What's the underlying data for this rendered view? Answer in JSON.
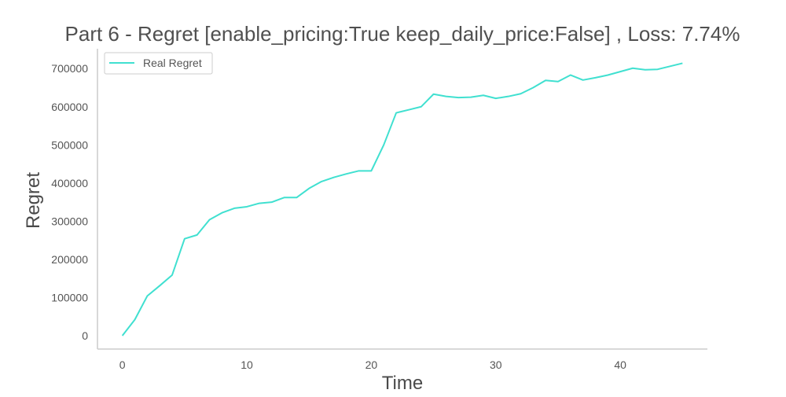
{
  "chart_data": {
    "type": "line",
    "title": "Part 6 - Regret [enable_pricing:True keep_daily_price:False] , Loss: 7.74%",
    "xlabel": "Time",
    "ylabel": "Regret",
    "xlim": [
      -2,
      47
    ],
    "ylim": [
      -35000,
      752000
    ],
    "xticks": [
      0,
      10,
      20,
      30,
      40
    ],
    "xtick_labels": [
      "0",
      "10",
      "20",
      "30",
      "40"
    ],
    "yticks": [
      0,
      100000,
      200000,
      300000,
      400000,
      500000,
      600000,
      700000
    ],
    "ytick_labels": [
      "0",
      "100000",
      "200000",
      "300000",
      "400000",
      "500000",
      "600000",
      "700000"
    ],
    "grid": false,
    "legend": {
      "position": "top-left",
      "entries": [
        "Real Regret"
      ]
    },
    "series": [
      {
        "name": "Real Regret",
        "color": "#40E0D0",
        "x": [
          0,
          1,
          2,
          3,
          4,
          5,
          6,
          7,
          8,
          9,
          10,
          11,
          12,
          13,
          14,
          15,
          16,
          17,
          18,
          19,
          20,
          21,
          22,
          23,
          24,
          25,
          26,
          27,
          28,
          29,
          30,
          31,
          32,
          33,
          34,
          35,
          36,
          37,
          38,
          39,
          40,
          41,
          42,
          43,
          44,
          45
        ],
        "y": [
          0,
          42000,
          104000,
          131000,
          159000,
          254000,
          264000,
          304000,
          322000,
          334000,
          338000,
          347000,
          350000,
          362000,
          362000,
          386000,
          404000,
          415000,
          424000,
          432000,
          432000,
          500000,
          584000,
          592000,
          600000,
          633000,
          627000,
          624000,
          625000,
          630000,
          622000,
          627000,
          634000,
          650000,
          669000,
          666000,
          683000,
          670000,
          676000,
          683000,
          692000,
          701000,
          697000,
          698000,
          706000,
          714000
        ]
      }
    ]
  }
}
